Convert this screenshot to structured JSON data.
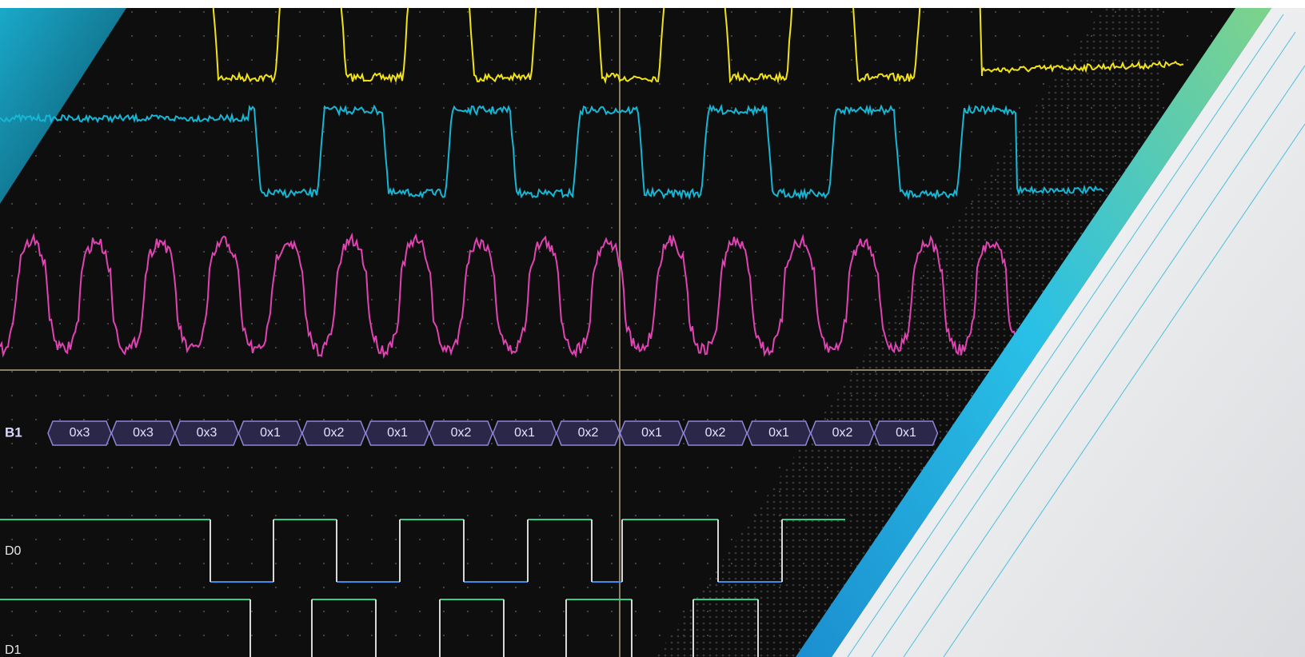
{
  "bus": {
    "label": "B1",
    "values": [
      "0x3",
      "0x3",
      "0x3",
      "0x1",
      "0x2",
      "0x1",
      "0x2",
      "0x1",
      "0x2",
      "0x1",
      "0x2",
      "0x1",
      "0x2",
      "0x1"
    ]
  },
  "channels": [
    "D0",
    "D1"
  ]
}
